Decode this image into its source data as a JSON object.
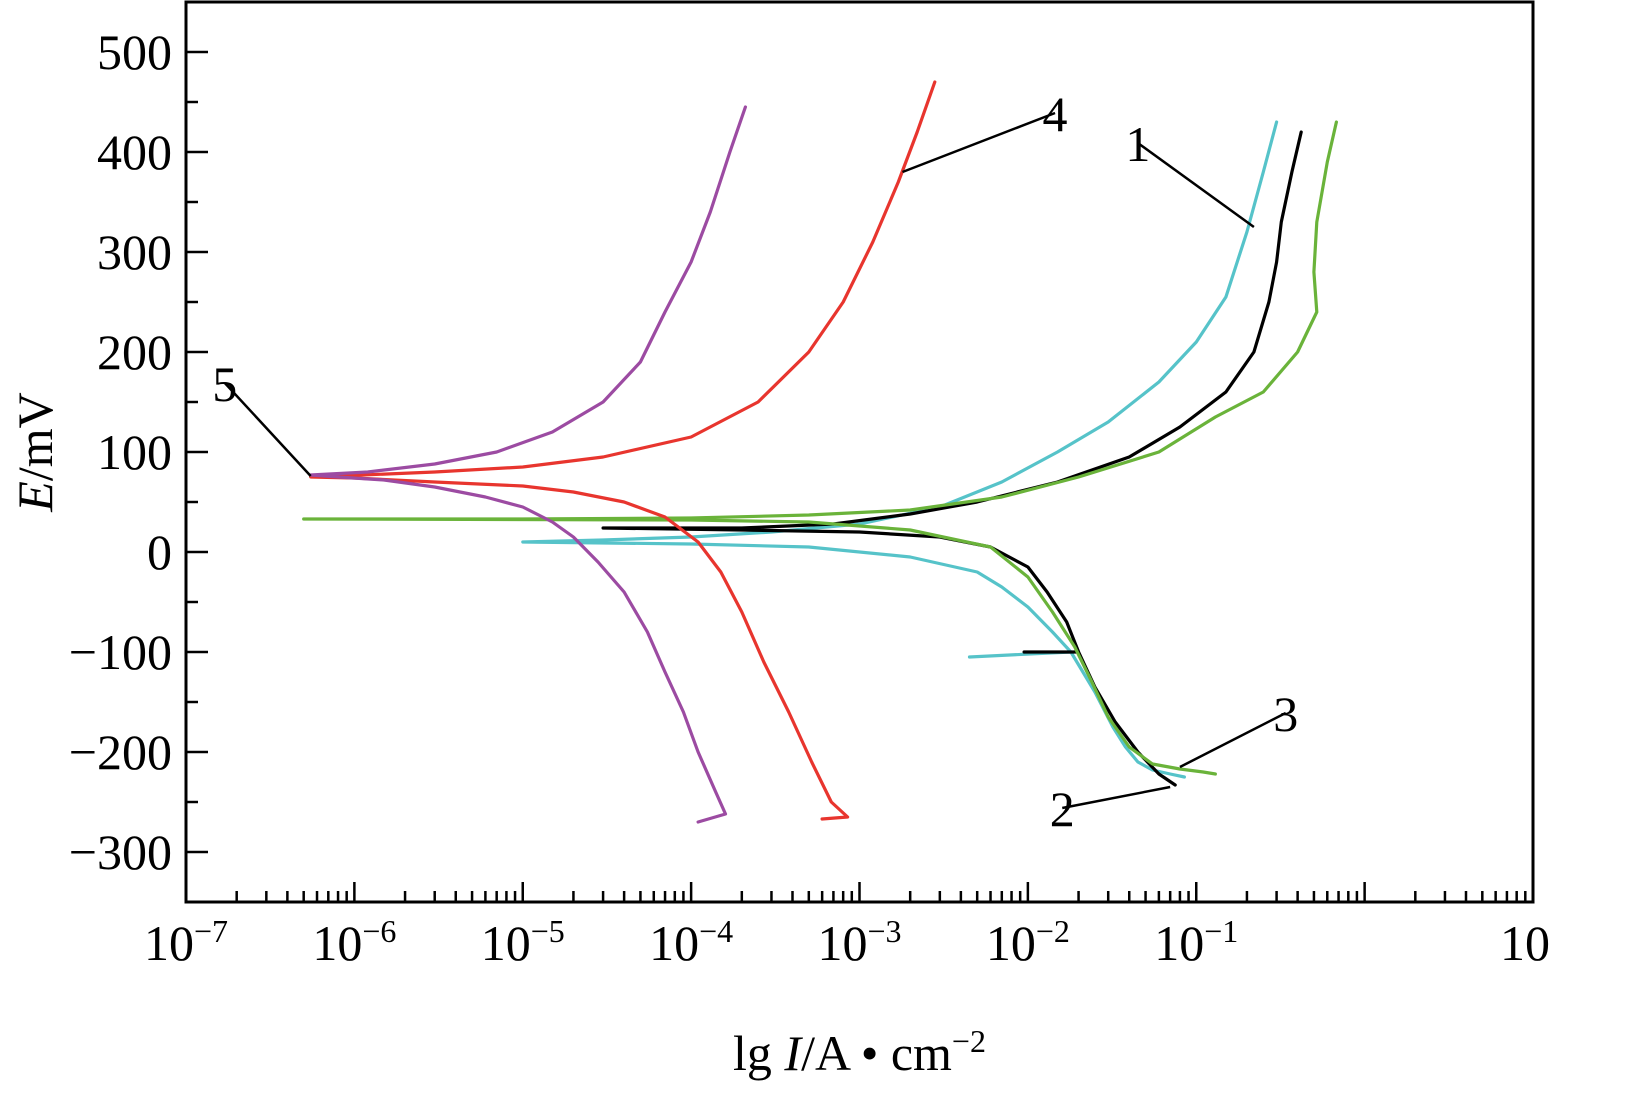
{
  "chart_data": {
    "type": "line",
    "xlabel": {
      "prefix": "lg ",
      "var": "I",
      "unit": "/A • cm",
      "sup": "−2"
    },
    "ylabel": {
      "var": "E",
      "unit": "/mV"
    },
    "x_scale": "log",
    "xlim": [
      1e-07,
      10
    ],
    "ylim": [
      -350,
      550
    ],
    "x_ticks": [
      {
        "value": 1e-07,
        "base": "10",
        "exp": "−7"
      },
      {
        "value": 1e-06,
        "base": "10",
        "exp": "−6"
      },
      {
        "value": 1e-05,
        "base": "10",
        "exp": "−5"
      },
      {
        "value": 0.0001,
        "base": "10",
        "exp": "−4"
      },
      {
        "value": 0.001,
        "base": "10",
        "exp": "−3"
      },
      {
        "value": 0.01,
        "base": "10",
        "exp": "−2"
      },
      {
        "value": 0.1,
        "base": "10",
        "exp": "−1"
      },
      {
        "value": 10,
        "base": "10",
        "exp": ""
      }
    ],
    "y_ticks": [
      {
        "value": 500,
        "label": "500"
      },
      {
        "value": 400,
        "label": "400"
      },
      {
        "value": 300,
        "label": "300"
      },
      {
        "value": 200,
        "label": "200"
      },
      {
        "value": 100,
        "label": "100"
      },
      {
        "value": 0,
        "label": "0"
      },
      {
        "value": -100,
        "label": "−100"
      },
      {
        "value": -200,
        "label": "−200"
      },
      {
        "value": -300,
        "label": "−300"
      }
    ],
    "grid": false,
    "series": [
      {
        "name": "1",
        "color": "#56c3c9",
        "points": [
          [
            0.3,
            430
          ],
          [
            0.25,
            380
          ],
          [
            0.2,
            320
          ],
          [
            0.15,
            255
          ],
          [
            0.1,
            210
          ],
          [
            0.06,
            170
          ],
          [
            0.03,
            130
          ],
          [
            0.015,
            100
          ],
          [
            0.007,
            70
          ],
          [
            0.003,
            45
          ],
          [
            0.001,
            28
          ],
          [
            0.0003,
            20
          ],
          [
            0.0001,
            15
          ],
          [
            3e-05,
            12
          ],
          [
            1e-05,
            10
          ],
          [
            0.0001,
            8
          ],
          [
            0.0005,
            5
          ],
          [
            0.002,
            -5
          ],
          [
            0.005,
            -20
          ],
          [
            0.007,
            -35
          ],
          [
            0.01,
            -55
          ],
          [
            0.014,
            -80
          ],
          [
            0.018,
            -100
          ],
          [
            0.0045,
            -105
          ],
          [
            0.018,
            -100
          ],
          [
            0.025,
            -140
          ],
          [
            0.032,
            -175
          ],
          [
            0.038,
            -195
          ],
          [
            0.045,
            -210
          ],
          [
            0.055,
            -218
          ],
          [
            0.07,
            -222
          ],
          [
            0.085,
            -225
          ]
        ]
      },
      {
        "name": "2",
        "color": "#000000",
        "points": [
          [
            0.42,
            420
          ],
          [
            0.37,
            380
          ],
          [
            0.32,
            330
          ],
          [
            0.3,
            290
          ],
          [
            0.27,
            250
          ],
          [
            0.22,
            200
          ],
          [
            0.15,
            160
          ],
          [
            0.08,
            125
          ],
          [
            0.04,
            95
          ],
          [
            0.015,
            70
          ],
          [
            0.005,
            50
          ],
          [
            0.002,
            38
          ],
          [
            0.0007,
            28
          ],
          [
            0.0002,
            24
          ],
          [
            3e-05,
            24
          ],
          [
            0.0002,
            22
          ],
          [
            0.001,
            20
          ],
          [
            0.003,
            15
          ],
          [
            0.006,
            5
          ],
          [
            0.01,
            -15
          ],
          [
            0.013,
            -40
          ],
          [
            0.017,
            -70
          ],
          [
            0.02,
            -100
          ],
          [
            0.0095,
            -100
          ],
          [
            0.02,
            -100
          ],
          [
            0.025,
            -135
          ],
          [
            0.033,
            -170
          ],
          [
            0.045,
            -200
          ],
          [
            0.06,
            -222
          ],
          [
            0.075,
            -233
          ]
        ]
      },
      {
        "name": "3",
        "color": "#6ab33a",
        "points": [
          [
            0.68,
            430
          ],
          [
            0.6,
            390
          ],
          [
            0.52,
            330
          ],
          [
            0.5,
            280
          ],
          [
            0.52,
            240
          ],
          [
            0.4,
            200
          ],
          [
            0.25,
            160
          ],
          [
            0.13,
            135
          ],
          [
            0.06,
            100
          ],
          [
            0.02,
            75
          ],
          [
            0.007,
            55
          ],
          [
            0.002,
            42
          ],
          [
            0.0005,
            37
          ],
          [
            0.0001,
            34
          ],
          [
            1e-05,
            33
          ],
          [
            5e-07,
            33
          ],
          [
            0.0001,
            32
          ],
          [
            0.0005,
            30
          ],
          [
            0.002,
            22
          ],
          [
            0.006,
            5
          ],
          [
            0.01,
            -25
          ],
          [
            0.014,
            -60
          ],
          [
            0.019,
            -95
          ],
          [
            0.024,
            -130
          ],
          [
            0.03,
            -165
          ],
          [
            0.04,
            -195
          ],
          [
            0.055,
            -212
          ],
          [
            0.08,
            -217
          ],
          [
            0.11,
            -220
          ],
          [
            0.13,
            -222
          ]
        ]
      },
      {
        "name": "4",
        "color": "#e8352e",
        "points": [
          [
            0.0028,
            470
          ],
          [
            0.0022,
            420
          ],
          [
            0.0017,
            370
          ],
          [
            0.0012,
            310
          ],
          [
            0.0008,
            250
          ],
          [
            0.0005,
            200
          ],
          [
            0.00025,
            150
          ],
          [
            0.0001,
            115
          ],
          [
            3e-05,
            95
          ],
          [
            1e-05,
            85
          ],
          [
            3e-06,
            80
          ],
          [
            8e-07,
            76
          ],
          [
            5.5e-07,
            75
          ],
          [
            1e-06,
            74
          ],
          [
            3e-06,
            70
          ],
          [
            1e-05,
            66
          ],
          [
            2e-05,
            60
          ],
          [
            4e-05,
            50
          ],
          [
            7e-05,
            35
          ],
          [
            0.00011,
            10
          ],
          [
            0.00015,
            -20
          ],
          [
            0.0002,
            -60
          ],
          [
            0.00027,
            -110
          ],
          [
            0.00038,
            -160
          ],
          [
            0.00052,
            -210
          ],
          [
            0.00068,
            -250
          ],
          [
            0.00085,
            -265
          ],
          [
            0.0006,
            -267
          ]
        ]
      },
      {
        "name": "5",
        "color": "#9c4ba2",
        "points": [
          [
            0.00021,
            445
          ],
          [
            0.00017,
            400
          ],
          [
            0.00013,
            340
          ],
          [
            0.0001,
            290
          ],
          [
            7e-05,
            240
          ],
          [
            5e-05,
            190
          ],
          [
            3e-05,
            150
          ],
          [
            1.5e-05,
            120
          ],
          [
            7e-06,
            100
          ],
          [
            3e-06,
            88
          ],
          [
            1.2e-06,
            80
          ],
          [
            5.5e-07,
            77
          ],
          [
            8e-07,
            75
          ],
          [
            1.5e-06,
            72
          ],
          [
            3e-06,
            65
          ],
          [
            6e-06,
            55
          ],
          [
            1e-05,
            45
          ],
          [
            1.5e-05,
            30
          ],
          [
            2e-05,
            15
          ],
          [
            2.8e-05,
            -10
          ],
          [
            4e-05,
            -40
          ],
          [
            5.5e-05,
            -80
          ],
          [
            7e-05,
            -120
          ],
          [
            9e-05,
            -160
          ],
          [
            0.00011,
            -200
          ],
          [
            0.00014,
            -240
          ],
          [
            0.00016,
            -262
          ],
          [
            0.00011,
            -270
          ]
        ]
      }
    ],
    "annotations": [
      {
        "text": "1",
        "from": [
          0.22,
          325
        ],
        "label_at": [
          0.045,
          395
        ]
      },
      {
        "text": "2",
        "from": [
          0.07,
          -235
        ],
        "label_at": [
          0.016,
          -270
        ]
      },
      {
        "text": "3",
        "from": [
          0.08,
          -215
        ],
        "label_at": [
          0.34,
          -175
        ]
      },
      {
        "text": "4",
        "from": [
          0.0018,
          380
        ],
        "label_at": [
          0.0145,
          425
        ]
      },
      {
        "text": "5",
        "from": [
          5.5e-07,
          76
        ],
        "label_at": [
          1.7e-07,
          155
        ]
      }
    ]
  }
}
